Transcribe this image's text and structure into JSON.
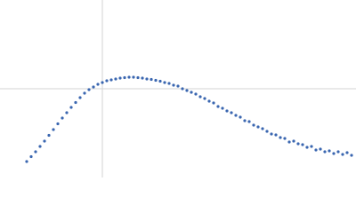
{
  "chart_data": {
    "type": "scatter",
    "x": [
      30,
      35,
      40,
      45,
      50,
      55,
      60,
      65,
      70,
      75,
      80,
      85,
      90,
      95,
      100,
      105,
      110,
      115,
      120,
      125,
      130,
      135,
      140,
      145,
      150,
      155,
      160,
      165,
      170,
      175,
      180,
      185,
      190,
      195,
      200,
      205,
      210,
      215,
      220,
      225,
      230,
      235,
      240,
      245,
      250,
      255,
      260,
      265,
      270,
      275,
      280,
      285,
      290,
      295,
      300,
      305,
      310,
      315,
      320,
      325,
      330,
      335,
      340,
      345,
      350,
      355,
      360,
      365,
      370,
      375,
      380,
      385,
      390,
      395
    ],
    "series": [
      {
        "color": "#3a66b0",
        "values": [
          18,
          23.5,
          29,
          35,
          41,
          47.5,
          54,
          60.5,
          67,
          73,
          79,
          84.5,
          90,
          95,
          99,
          102,
          105,
          107,
          109,
          110,
          111,
          112,
          112.5,
          113,
          113,
          112.5,
          112,
          111,
          110.5,
          109.5,
          108.5,
          107,
          106,
          104,
          103,
          100,
          98,
          96,
          94,
          91,
          89,
          86,
          84,
          80,
          78,
          75,
          73,
          70,
          68,
          64,
          63,
          59,
          57,
          55,
          52,
          49,
          48,
          45,
          44,
          40,
          41,
          38,
          37,
          34,
          35,
          31,
          32,
          29,
          30,
          27,
          29,
          26,
          28,
          25
        ]
      }
    ],
    "xlim": [
      0,
      400
    ],
    "ylim": [
      0,
      200
    ],
    "xticks": [
      115
    ],
    "yticks": [
      100
    ],
    "grid": true
  }
}
